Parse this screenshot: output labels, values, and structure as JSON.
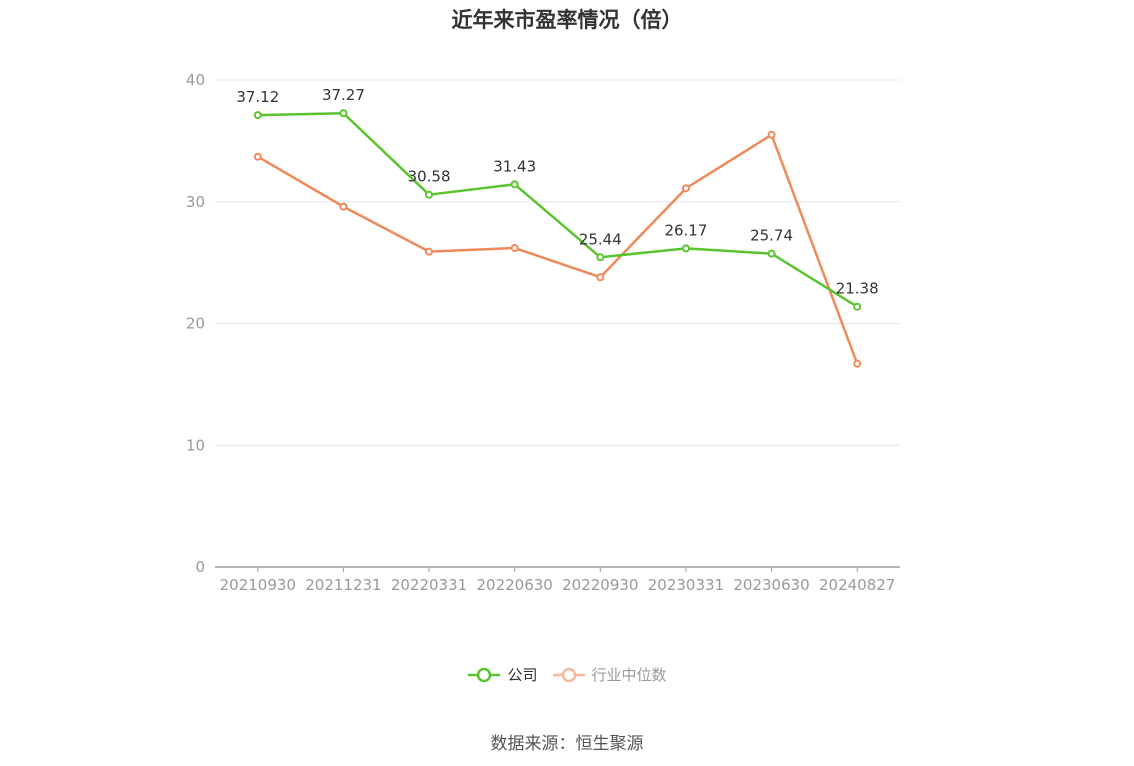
{
  "chart_data": {
    "type": "line",
    "title": "近年来市盈率情况（倍）",
    "categories": [
      "20210930",
      "20211231",
      "20220331",
      "20220630",
      "20220930",
      "20230331",
      "20230630",
      "20240827"
    ],
    "ylim": [
      0,
      40
    ],
    "yticks": [
      0,
      10,
      20,
      30,
      40
    ],
    "grid": true,
    "legend_position": "bottom",
    "series": [
      {
        "name": "公司",
        "color": "#5ac42e",
        "values": [
          37.12,
          37.27,
          30.58,
          31.43,
          25.44,
          26.17,
          25.74,
          21.38
        ],
        "labels": [
          "37.12",
          "37.27",
          "30.58",
          "31.43",
          "25.44",
          "26.17",
          "25.74",
          "21.38"
        ]
      },
      {
        "name": "行业中位数",
        "color": "#f0895a",
        "values": [
          33.7,
          29.6,
          25.9,
          26.2,
          23.8,
          31.1,
          35.5,
          16.7
        ]
      }
    ]
  },
  "legend": {
    "company_label": "公司",
    "industry_label": "行业中位数",
    "company_marker_color": "#5ac42e",
    "industry_marker_color": "#f7b89b",
    "industry_text_color": "#999999"
  },
  "footer": {
    "source": "数据来源：恒生聚源"
  }
}
